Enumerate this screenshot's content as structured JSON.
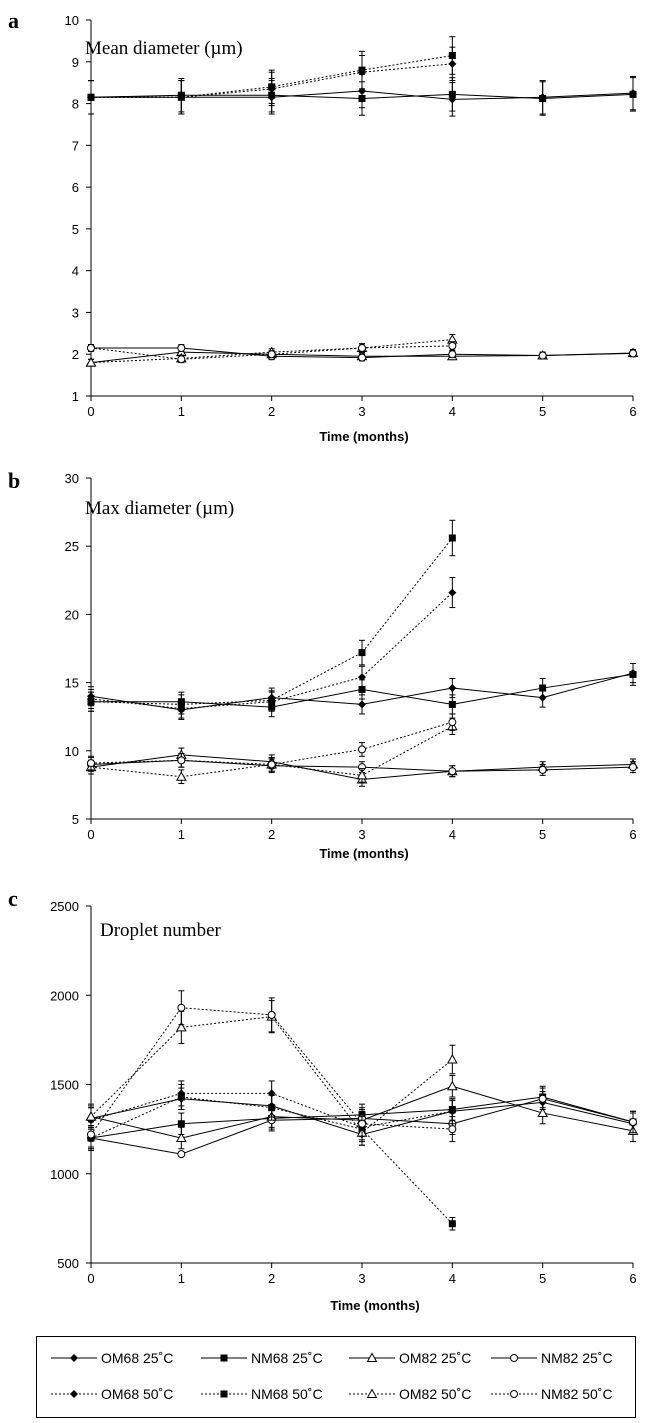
{
  "x_label": "Time (months)",
  "legend": [
    {
      "key": "OM68_25",
      "label": "OM68 25˚C",
      "marker": "diamond",
      "dashed": false
    },
    {
      "key": "NM68_25",
      "label": "NM68 25˚C",
      "marker": "square",
      "dashed": false
    },
    {
      "key": "OM82_25",
      "label": "OM82 25˚C",
      "marker": "triangle",
      "dashed": false
    },
    {
      "key": "NM82_25",
      "label": "NM82 25˚C",
      "marker": "circle",
      "dashed": false
    },
    {
      "key": "OM68_50",
      "label": "OM68 50˚C",
      "marker": "diamond",
      "dashed": true
    },
    {
      "key": "NM68_50",
      "label": "NM68 50˚C",
      "marker": "square",
      "dashed": true
    },
    {
      "key": "OM82_50",
      "label": "OM82 50˚C",
      "marker": "triangle",
      "dashed": true
    },
    {
      "key": "NM82_50",
      "label": "NM82 50˚C",
      "marker": "circle",
      "dashed": true
    }
  ],
  "chart_data": [
    {
      "panel": "a",
      "type": "line",
      "title": "Mean diameter (µm)",
      "xlabel": "Time (months)",
      "ylabel": "",
      "xlim": [
        0,
        6
      ],
      "ylim": [
        1,
        10
      ],
      "yticks": [
        1,
        2,
        3,
        4,
        5,
        6,
        7,
        8,
        9,
        10
      ],
      "xticks": [
        0,
        1,
        2,
        3,
        4,
        5,
        6
      ],
      "series": [
        {
          "key": "OM68_25",
          "x": [
            0,
            1,
            2,
            3,
            4,
            5,
            6
          ],
          "y": [
            8.15,
            8.15,
            8.15,
            8.3,
            8.1,
            8.15,
            8.25
          ],
          "err": [
            0.4,
            0.4,
            0.4,
            0.4,
            0.4,
            0.4,
            0.4
          ]
        },
        {
          "key": "NM68_25",
          "x": [
            0,
            1,
            2,
            3,
            4,
            5,
            6
          ],
          "y": [
            8.15,
            8.2,
            8.2,
            8.12,
            8.22,
            8.12,
            8.22
          ],
          "err": [
            0.4,
            0.4,
            0.4,
            0.4,
            0.4,
            0.4,
            0.4
          ]
        },
        {
          "key": "OM82_25",
          "x": [
            0,
            1,
            2,
            3,
            4,
            5,
            6
          ],
          "y": [
            1.8,
            2.05,
            2.0,
            1.95,
            1.95,
            1.97,
            2.03
          ],
          "err": [
            0.08,
            0.08,
            0.08,
            0.08,
            0.08,
            0.08,
            0.08
          ]
        },
        {
          "key": "NM82_25",
          "x": [
            0,
            1,
            2,
            3,
            4,
            5,
            6
          ],
          "y": [
            2.15,
            2.15,
            1.95,
            1.92,
            2.0,
            1.97,
            2.02
          ],
          "err": [
            0.08,
            0.08,
            0.08,
            0.08,
            0.08,
            0.08,
            0.08
          ]
        },
        {
          "key": "OM68_50",
          "x": [
            0,
            1,
            2,
            3,
            4
          ],
          "y": [
            8.15,
            8.15,
            8.35,
            8.75,
            8.95
          ],
          "err": [
            0.4,
            0.4,
            0.4,
            0.4,
            0.4
          ]
        },
        {
          "key": "NM68_50",
          "x": [
            0,
            1,
            2,
            3,
            4
          ],
          "y": [
            8.15,
            8.15,
            8.4,
            8.8,
            9.15
          ],
          "err": [
            0.4,
            0.4,
            0.4,
            0.45,
            0.45
          ]
        },
        {
          "key": "OM82_50",
          "x": [
            0,
            1,
            2,
            3,
            4
          ],
          "y": [
            1.8,
            1.9,
            2.05,
            2.15,
            2.35
          ],
          "err": [
            0.08,
            0.08,
            0.08,
            0.1,
            0.12
          ]
        },
        {
          "key": "NM82_50",
          "x": [
            0,
            1,
            2,
            3,
            4
          ],
          "y": [
            2.15,
            1.88,
            2.0,
            2.15,
            2.2
          ],
          "err": [
            0.08,
            0.08,
            0.08,
            0.1,
            0.1
          ]
        }
      ]
    },
    {
      "panel": "b",
      "type": "line",
      "title": "Max diameter (µm)",
      "xlabel": "Time (months)",
      "ylabel": "",
      "xlim": [
        0,
        6
      ],
      "ylim": [
        5,
        30
      ],
      "yticks": [
        5,
        10,
        15,
        20,
        25,
        30
      ],
      "xticks": [
        0,
        1,
        2,
        3,
        4,
        5,
        6
      ],
      "series": [
        {
          "key": "OM68_25",
          "x": [
            0,
            1,
            2,
            3,
            4,
            5,
            6
          ],
          "y": [
            14.0,
            13.0,
            13.9,
            13.4,
            14.6,
            13.9,
            15.7
          ],
          "err": [
            0.7,
            0.7,
            0.7,
            0.7,
            0.7,
            0.7,
            0.7
          ]
        },
        {
          "key": "NM68_25",
          "x": [
            0,
            1,
            2,
            3,
            4,
            5,
            6
          ],
          "y": [
            13.6,
            13.6,
            13.2,
            14.5,
            13.4,
            14.6,
            15.6
          ],
          "err": [
            0.7,
            0.7,
            0.7,
            0.7,
            0.7,
            0.7,
            0.8
          ]
        },
        {
          "key": "OM82_25",
          "x": [
            0,
            1,
            2,
            3,
            4,
            5,
            6
          ],
          "y": [
            8.8,
            9.7,
            9.2,
            7.9,
            8.5,
            8.8,
            9.0
          ],
          "err": [
            0.5,
            0.5,
            0.5,
            0.5,
            0.4,
            0.4,
            0.4
          ]
        },
        {
          "key": "NM82_25",
          "x": [
            0,
            1,
            2,
            3,
            4,
            5,
            6
          ],
          "y": [
            9.0,
            9.3,
            8.9,
            8.8,
            8.5,
            8.6,
            8.8
          ],
          "err": [
            0.5,
            0.5,
            0.5,
            0.4,
            0.4,
            0.4,
            0.4
          ]
        },
        {
          "key": "OM68_50",
          "x": [
            0,
            1,
            2,
            3,
            4
          ],
          "y": [
            13.8,
            13.1,
            13.6,
            15.4,
            21.6
          ],
          "err": [
            0.7,
            0.7,
            0.7,
            0.8,
            1.1
          ]
        },
        {
          "key": "NM68_50",
          "x": [
            0,
            1,
            2,
            3,
            4
          ],
          "y": [
            13.6,
            13.4,
            13.7,
            17.2,
            25.6
          ],
          "err": [
            0.7,
            0.7,
            0.7,
            0.9,
            1.3
          ]
        },
        {
          "key": "OM82_50",
          "x": [
            0,
            1,
            2,
            3,
            4
          ],
          "y": [
            8.8,
            8.1,
            9.0,
            8.2,
            11.8
          ],
          "err": [
            0.5,
            0.5,
            0.5,
            0.5,
            0.6
          ]
        },
        {
          "key": "NM82_50",
          "x": [
            0,
            1,
            2,
            3,
            4
          ],
          "y": [
            9.1,
            9.3,
            9.0,
            10.1,
            12.1
          ],
          "err": [
            0.5,
            0.5,
            0.5,
            0.5,
            0.6
          ]
        }
      ]
    },
    {
      "panel": "c",
      "type": "line",
      "title": "Droplet number",
      "xlabel": "Time (months)",
      "ylabel": "",
      "xlim": [
        0,
        6
      ],
      "ylim": [
        500,
        2500
      ],
      "yticks": [
        500,
        1000,
        1500,
        2000,
        2500
      ],
      "xticks": [
        0,
        1,
        2,
        3,
        4,
        5,
        6
      ],
      "series": [
        {
          "key": "OM68_25",
          "x": [
            0,
            1,
            2,
            3,
            4,
            5,
            6
          ],
          "y": [
            1310,
            1420,
            1380,
            1220,
            1350,
            1400,
            1280
          ],
          "err": [
            60,
            60,
            60,
            60,
            60,
            60,
            60
          ]
        },
        {
          "key": "NM68_25",
          "x": [
            0,
            1,
            2,
            3,
            4,
            5,
            6
          ],
          "y": [
            1200,
            1280,
            1310,
            1330,
            1360,
            1430,
            1290
          ],
          "err": [
            60,
            60,
            60,
            60,
            60,
            60,
            60
          ]
        },
        {
          "key": "OM82_25",
          "x": [
            0,
            1,
            2,
            3,
            4,
            5,
            6
          ],
          "y": [
            1320,
            1200,
            1320,
            1300,
            1490,
            1340,
            1240
          ],
          "err": [
            60,
            60,
            60,
            60,
            60,
            60,
            60
          ]
        },
        {
          "key": "NM82_25",
          "x": [
            0,
            1,
            2,
            3,
            4,
            5,
            6
          ],
          "y": [
            1200,
            1110,
            1300,
            1310,
            1280,
            1420,
            1290
          ],
          "err": [
            60,
            0,
            60,
            60,
            60,
            60,
            60
          ]
        },
        {
          "key": "OM68_50",
          "x": [
            0,
            1,
            2,
            3,
            4
          ],
          "y": [
            1300,
            1450,
            1450,
            1260,
            1350
          ],
          "err": [
            70,
            70,
            70,
            70,
            70
          ]
        },
        {
          "key": "NM68_50",
          "x": [
            0,
            1,
            2,
            3,
            4
          ],
          "y": [
            1200,
            1430,
            1370,
            1250,
            720
          ],
          "err": [
            70,
            70,
            70,
            70,
            35
          ]
        },
        {
          "key": "OM82_50",
          "x": [
            0,
            1,
            2,
            3,
            4
          ],
          "y": [
            1320,
            1820,
            1880,
            1230,
            1640
          ],
          "err": [
            70,
            90,
            90,
            70,
            80
          ]
        },
        {
          "key": "NM82_50",
          "x": [
            0,
            1,
            2,
            3,
            4
          ],
          "y": [
            1220,
            1930,
            1890,
            1280,
            1250
          ],
          "err": [
            70,
            95,
            95,
            70,
            70
          ]
        }
      ]
    }
  ]
}
